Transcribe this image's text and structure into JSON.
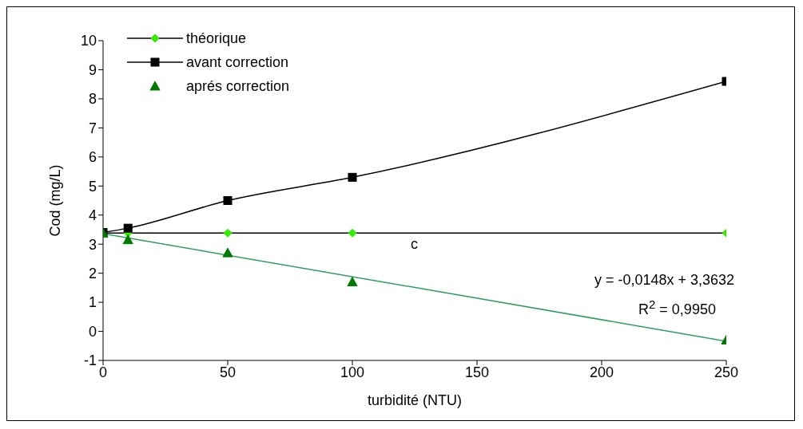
{
  "chart_data": {
    "type": "line",
    "xlabel": "turbidité (NTU)",
    "ylabel": "Cod (mg/L)",
    "xlim": [
      0,
      250
    ],
    "xticks": [
      0,
      50,
      100,
      150,
      200,
      250
    ],
    "ylim": [
      -1,
      10
    ],
    "yticks": [
      -1,
      0,
      1,
      2,
      3,
      4,
      5,
      6,
      7,
      8,
      9,
      10
    ],
    "legend": "top left",
    "x": [
      0,
      10,
      50,
      100,
      250
    ],
    "series": [
      {
        "name": "théorique",
        "marker": "diamond",
        "color": "#000000",
        "colors": [
          "#33ee00",
          "#33ee00",
          "#33ee00",
          "#33ee00",
          "#33ee00"
        ],
        "values": [
          3.38,
          3.38,
          3.38,
          3.38,
          3.38
        ]
      },
      {
        "name": "avant correction",
        "marker": "square",
        "color": "#000000",
        "values": [
          3.4,
          3.55,
          4.5,
          5.3,
          8.6
        ]
      },
      {
        "name": "aprés correction",
        "type": "scatter",
        "marker": "triangle",
        "color": "#007a00",
        "values": [
          3.38,
          3.15,
          2.7,
          1.7,
          -0.3
        ]
      },
      {
        "marker": "none",
        "color": "#2e9e5e",
        "x": [
          0,
          250
        ],
        "values": [
          3.36,
          -0.34
        ]
      }
    ],
    "annotations": [
      "c",
      "y = -0,0148x + 3,3632",
      "R$^{2}$ = 0,9950"
    ]
  }
}
